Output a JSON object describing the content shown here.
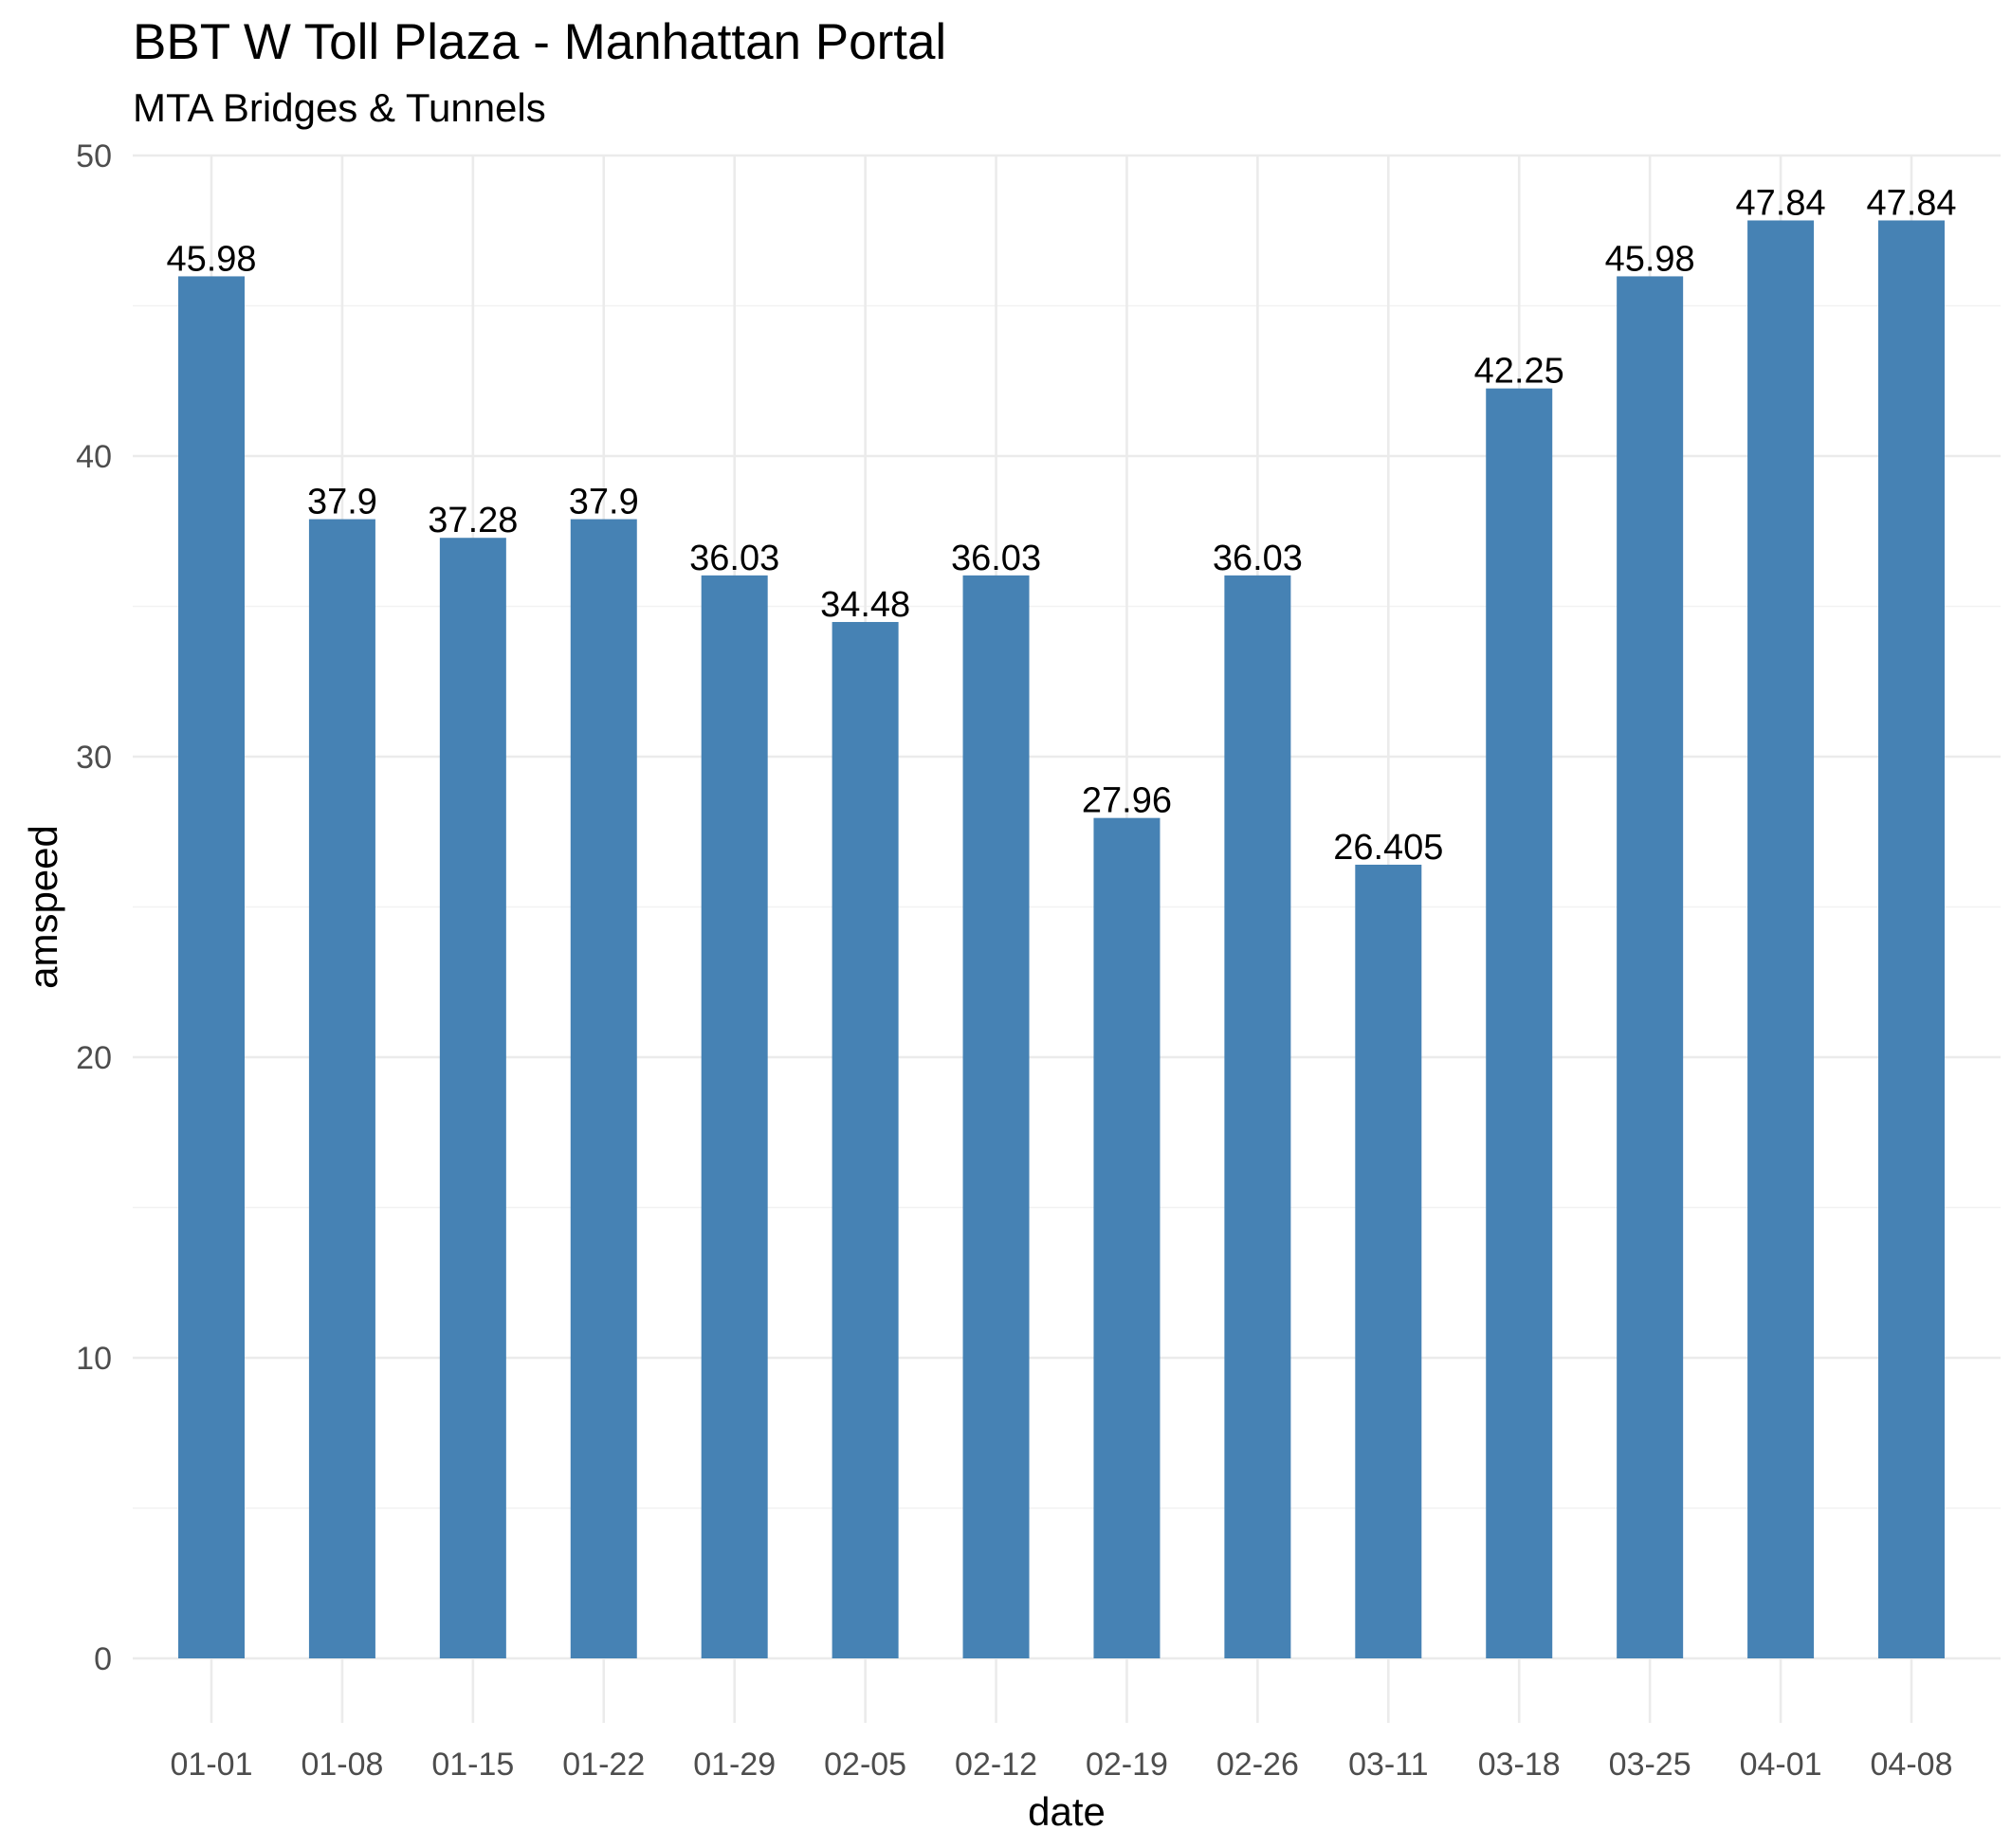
{
  "chart_data": {
    "type": "bar",
    "title": "BBT W Toll Plaza - Manhattan Portal",
    "subtitle": "MTA Bridges & Tunnels",
    "xlabel": "date",
    "ylabel": "amspeed",
    "categories": [
      "01-01",
      "01-08",
      "01-15",
      "01-22",
      "01-29",
      "02-05",
      "02-12",
      "02-19",
      "02-26",
      "03-11",
      "03-18",
      "03-25",
      "04-01",
      "04-08"
    ],
    "values": [
      45.98,
      37.9,
      37.28,
      37.9,
      36.03,
      34.48,
      36.03,
      27.96,
      36.03,
      26.405,
      42.25,
      45.98,
      47.84,
      47.84
    ],
    "data_labels": [
      "45.98",
      "37.9",
      "37.28",
      "37.9",
      "36.03",
      "34.48",
      "36.03",
      "27.96",
      "36.03",
      "26.405",
      "42.25",
      "45.98",
      "47.84",
      "47.84"
    ],
    "ylim": [
      0,
      50
    ],
    "yticks": [
      0,
      10,
      20,
      30,
      40,
      50
    ],
    "grid": true,
    "bar_color": "#4682b4",
    "legend": "none"
  }
}
